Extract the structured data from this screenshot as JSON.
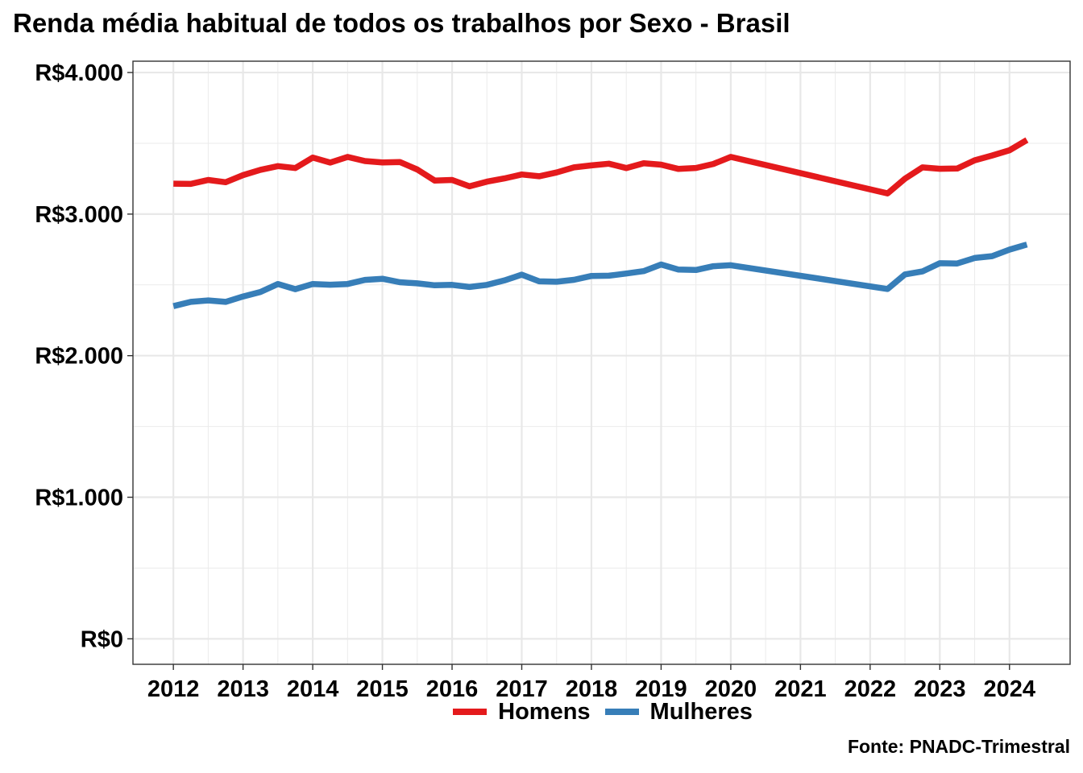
{
  "chart_data": {
    "type": "line",
    "title": "Renda média habitual de todos os trabalhos por Sexo - Brasil",
    "caption": "Fonte: PNADC-Trimestral",
    "xlabel": "",
    "ylabel": "",
    "xlim": [
      2011.42,
      2024.87
    ],
    "ylim": [
      -180,
      4080
    ],
    "y_ticks": [
      0,
      1000,
      2000,
      3000,
      4000
    ],
    "y_tick_labels": [
      "R$0",
      "R$1.000",
      "R$2.000",
      "R$3.000",
      "R$4.000"
    ],
    "x_ticks": [
      2012,
      2013,
      2014,
      2015,
      2016,
      2017,
      2018,
      2019,
      2020,
      2021,
      2022,
      2023,
      2024
    ],
    "x_tick_labels": [
      "2012",
      "2013",
      "2014",
      "2015",
      "2016",
      "2017",
      "2018",
      "2019",
      "2020",
      "2021",
      "2022",
      "2023",
      "2024"
    ],
    "grid": true,
    "legend_position": "bottom",
    "x": [
      2012,
      2012.25,
      2012.5,
      2012.75,
      2013,
      2013.25,
      2013.5,
      2013.75,
      2014,
      2014.25,
      2014.5,
      2014.75,
      2015,
      2015.25,
      2015.5,
      2015.75,
      2016,
      2016.25,
      2016.5,
      2016.75,
      2017,
      2017.25,
      2017.5,
      2017.75,
      2018,
      2018.25,
      2018.5,
      2018.75,
      2019,
      2019.25,
      2019.5,
      2019.75,
      2020,
      2022.25,
      2022.5,
      2022.75,
      2023,
      2023.25,
      2023.5,
      2023.75,
      2024,
      2024.25
    ],
    "series": [
      {
        "name": "Homens",
        "color": "#E41A1C",
        "values": [
          3215,
          3213,
          3241,
          3225,
          3275,
          3313,
          3339,
          3325,
          3399,
          3364,
          3404,
          3375,
          3365,
          3368,
          3315,
          3237,
          3241,
          3196,
          3229,
          3252,
          3280,
          3267,
          3294,
          3330,
          3344,
          3356,
          3325,
          3359,
          3349,
          3319,
          3326,
          3354,
          3404,
          3146,
          3250,
          3330,
          3320,
          3322,
          3380,
          3414,
          3451,
          3523
        ]
      },
      {
        "name": "Mulheres",
        "color": "#377EB8",
        "values": [
          2350,
          2380,
          2390,
          2380,
          2418,
          2450,
          2506,
          2470,
          2506,
          2501,
          2506,
          2535,
          2543,
          2519,
          2511,
          2497,
          2500,
          2485,
          2500,
          2531,
          2572,
          2525,
          2522,
          2536,
          2563,
          2565,
          2580,
          2597,
          2644,
          2608,
          2605,
          2632,
          2639,
          2471,
          2574,
          2595,
          2653,
          2651,
          2690,
          2703,
          2749,
          2785
        ]
      }
    ]
  }
}
